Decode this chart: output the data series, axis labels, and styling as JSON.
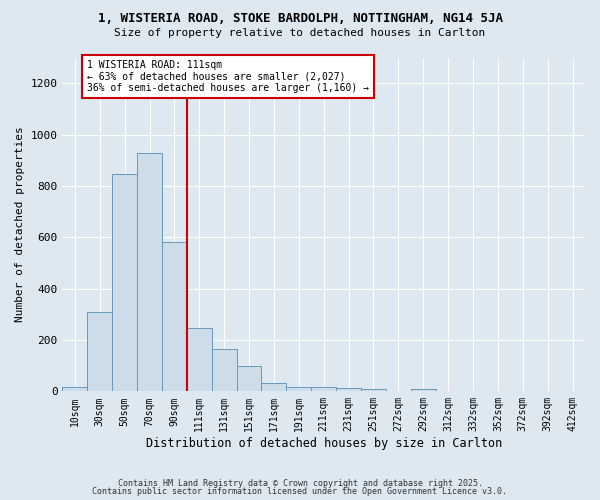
{
  "title_line1": "1, WISTERIA ROAD, STOKE BARDOLPH, NOTTINGHAM, NG14 5JA",
  "title_line2": "Size of property relative to detached houses in Carlton",
  "xlabel": "Distribution of detached houses by size in Carlton",
  "ylabel": "Number of detached properties",
  "bar_labels": [
    "10sqm",
    "30sqm",
    "50sqm",
    "70sqm",
    "90sqm",
    "111sqm",
    "131sqm",
    "151sqm",
    "171sqm",
    "191sqm",
    "211sqm",
    "231sqm",
    "251sqm",
    "272sqm",
    "292sqm",
    "312sqm",
    "332sqm",
    "352sqm",
    "372sqm",
    "392sqm",
    "412sqm"
  ],
  "bar_values": [
    18,
    310,
    848,
    930,
    580,
    248,
    165,
    100,
    33,
    18,
    15,
    12,
    10,
    0,
    10,
    0,
    0,
    0,
    0,
    0,
    0
  ],
  "bar_color": "#ccdce8",
  "bar_edgecolor": "#6699bb",
  "vline_index": 4,
  "vline_color": "#cc0000",
  "annotation_text": "1 WISTERIA ROAD: 111sqm\n← 63% of detached houses are smaller (2,027)\n36% of semi-detached houses are larger (1,160) →",
  "annotation_box_edgecolor": "#cc0000",
  "annotation_box_facecolor": "#ffffff",
  "ylim": [
    0,
    1300
  ],
  "yticks": [
    0,
    200,
    400,
    600,
    800,
    1000,
    1200
  ],
  "plot_bg_color": "#dde8f0",
  "fig_bg_color": "#dde8f0",
  "grid_color": "#ffffff",
  "footer_line1": "Contains HM Land Registry data © Crown copyright and database right 2025.",
  "footer_line2": "Contains public sector information licensed under the Open Government Licence v3.0."
}
